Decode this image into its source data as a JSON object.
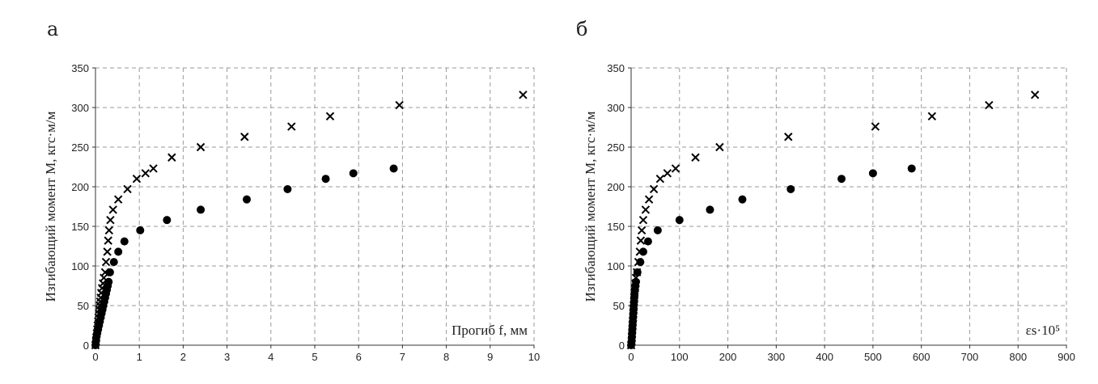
{
  "panels": {
    "a_label": "а",
    "b_label": "б"
  },
  "chart_data": [
    {
      "type": "scatter",
      "panel": "а",
      "title": "",
      "xlabel": "Прогиб f, мм",
      "ylabel": "Изгибающий момент М, кгс·м/м",
      "xlim": [
        0,
        10
      ],
      "ylim": [
        0,
        350
      ],
      "xticks": [
        0,
        1,
        2,
        3,
        4,
        5,
        6,
        7,
        8,
        9,
        10
      ],
      "yticks": [
        0,
        50,
        100,
        150,
        200,
        250,
        300,
        350
      ],
      "grid": true,
      "series": [
        {
          "marker": "circle",
          "points": [
            [
              0.0,
              0
            ],
            [
              0.01,
              5
            ],
            [
              0.02,
              10
            ],
            [
              0.04,
              15
            ],
            [
              0.06,
              20
            ],
            [
              0.08,
              25
            ],
            [
              0.1,
              30
            ],
            [
              0.12,
              35
            ],
            [
              0.14,
              40
            ],
            [
              0.16,
              45
            ],
            [
              0.18,
              50
            ],
            [
              0.2,
              55
            ],
            [
              0.22,
              60
            ],
            [
              0.24,
              65
            ],
            [
              0.26,
              70
            ],
            [
              0.28,
              75
            ],
            [
              0.3,
              80
            ],
            [
              0.33,
              92
            ],
            [
              0.42,
              105
            ],
            [
              0.52,
              118
            ],
            [
              0.66,
              131
            ],
            [
              1.02,
              145
            ],
            [
              1.63,
              158
            ],
            [
              2.4,
              171
            ],
            [
              3.45,
              184
            ],
            [
              4.38,
              197
            ],
            [
              5.25,
              210
            ],
            [
              5.88,
              217
            ],
            [
              6.8,
              223
            ]
          ]
        },
        {
          "marker": "cross",
          "points": [
            [
              0.0,
              0
            ],
            [
              0.01,
              5
            ],
            [
              0.02,
              10
            ],
            [
              0.03,
              15
            ],
            [
              0.04,
              20
            ],
            [
              0.05,
              25
            ],
            [
              0.06,
              30
            ],
            [
              0.07,
              35
            ],
            [
              0.08,
              40
            ],
            [
              0.09,
              45
            ],
            [
              0.1,
              50
            ],
            [
              0.11,
              55
            ],
            [
              0.12,
              60
            ],
            [
              0.13,
              66
            ],
            [
              0.15,
              72
            ],
            [
              0.17,
              78
            ],
            [
              0.19,
              85
            ],
            [
              0.22,
              92
            ],
            [
              0.24,
              105
            ],
            [
              0.27,
              118
            ],
            [
              0.29,
              132
            ],
            [
              0.31,
              145
            ],
            [
              0.34,
              158
            ],
            [
              0.4,
              171
            ],
            [
              0.52,
              184
            ],
            [
              0.73,
              197
            ],
            [
              0.94,
              210
            ],
            [
              1.14,
              217
            ],
            [
              1.32,
              223
            ],
            [
              1.74,
              237
            ],
            [
              2.4,
              250
            ],
            [
              3.4,
              263
            ],
            [
              4.47,
              276
            ],
            [
              5.35,
              289
            ],
            [
              6.93,
              303
            ],
            [
              9.75,
              316
            ]
          ]
        }
      ]
    },
    {
      "type": "scatter",
      "panel": "б",
      "title": "",
      "xlabel": "εs·10⁵",
      "ylabel": "Изгибающий момент М, кгс·м/м",
      "xlim": [
        0,
        900
      ],
      "ylim": [
        0,
        350
      ],
      "xticks": [
        0,
        100,
        200,
        300,
        400,
        500,
        600,
        700,
        800,
        900
      ],
      "yticks": [
        0,
        50,
        100,
        150,
        200,
        250,
        300,
        350
      ],
      "grid": true,
      "series": [
        {
          "marker": "circle",
          "points": [
            [
              0,
              0
            ],
            [
              1,
              5
            ],
            [
              1.5,
              10
            ],
            [
              2,
              15
            ],
            [
              2.5,
              20
            ],
            [
              3,
              25
            ],
            [
              3.5,
              30
            ],
            [
              4,
              35
            ],
            [
              4.5,
              40
            ],
            [
              5,
              45
            ],
            [
              5.5,
              50
            ],
            [
              6,
              55
            ],
            [
              6.5,
              60
            ],
            [
              7,
              65
            ],
            [
              8,
              70
            ],
            [
              9,
              75
            ],
            [
              10,
              80
            ],
            [
              13,
              92
            ],
            [
              19,
              105
            ],
            [
              25,
              118
            ],
            [
              35,
              131
            ],
            [
              55,
              145
            ],
            [
              100,
              158
            ],
            [
              163,
              171
            ],
            [
              230,
              184
            ],
            [
              330,
              197
            ],
            [
              435,
              210
            ],
            [
              500,
              217
            ],
            [
              580,
              223
            ]
          ]
        },
        {
          "marker": "cross",
          "points": [
            [
              0,
              0
            ],
            [
              1,
              5
            ],
            [
              1.5,
              10
            ],
            [
              2,
              15
            ],
            [
              2.5,
              20
            ],
            [
              3,
              25
            ],
            [
              3.5,
              30
            ],
            [
              4,
              35
            ],
            [
              4.5,
              40
            ],
            [
              5,
              45
            ],
            [
              5.5,
              50
            ],
            [
              6,
              55
            ],
            [
              6.5,
              60
            ],
            [
              7,
              66
            ],
            [
              8,
              72
            ],
            [
              9,
              78
            ],
            [
              10,
              85
            ],
            [
              12,
              92
            ],
            [
              15,
              105
            ],
            [
              18,
              118
            ],
            [
              20,
              132
            ],
            [
              22,
              145
            ],
            [
              25,
              158
            ],
            [
              30,
              171
            ],
            [
              37,
              184
            ],
            [
              47,
              197
            ],
            [
              60,
              210
            ],
            [
              75,
              217
            ],
            [
              92,
              223
            ],
            [
              133,
              237
            ],
            [
              183,
              250
            ],
            [
              325,
              263
            ],
            [
              505,
              276
            ],
            [
              622,
              289
            ],
            [
              740,
              303
            ],
            [
              835,
              316
            ]
          ]
        }
      ]
    }
  ]
}
